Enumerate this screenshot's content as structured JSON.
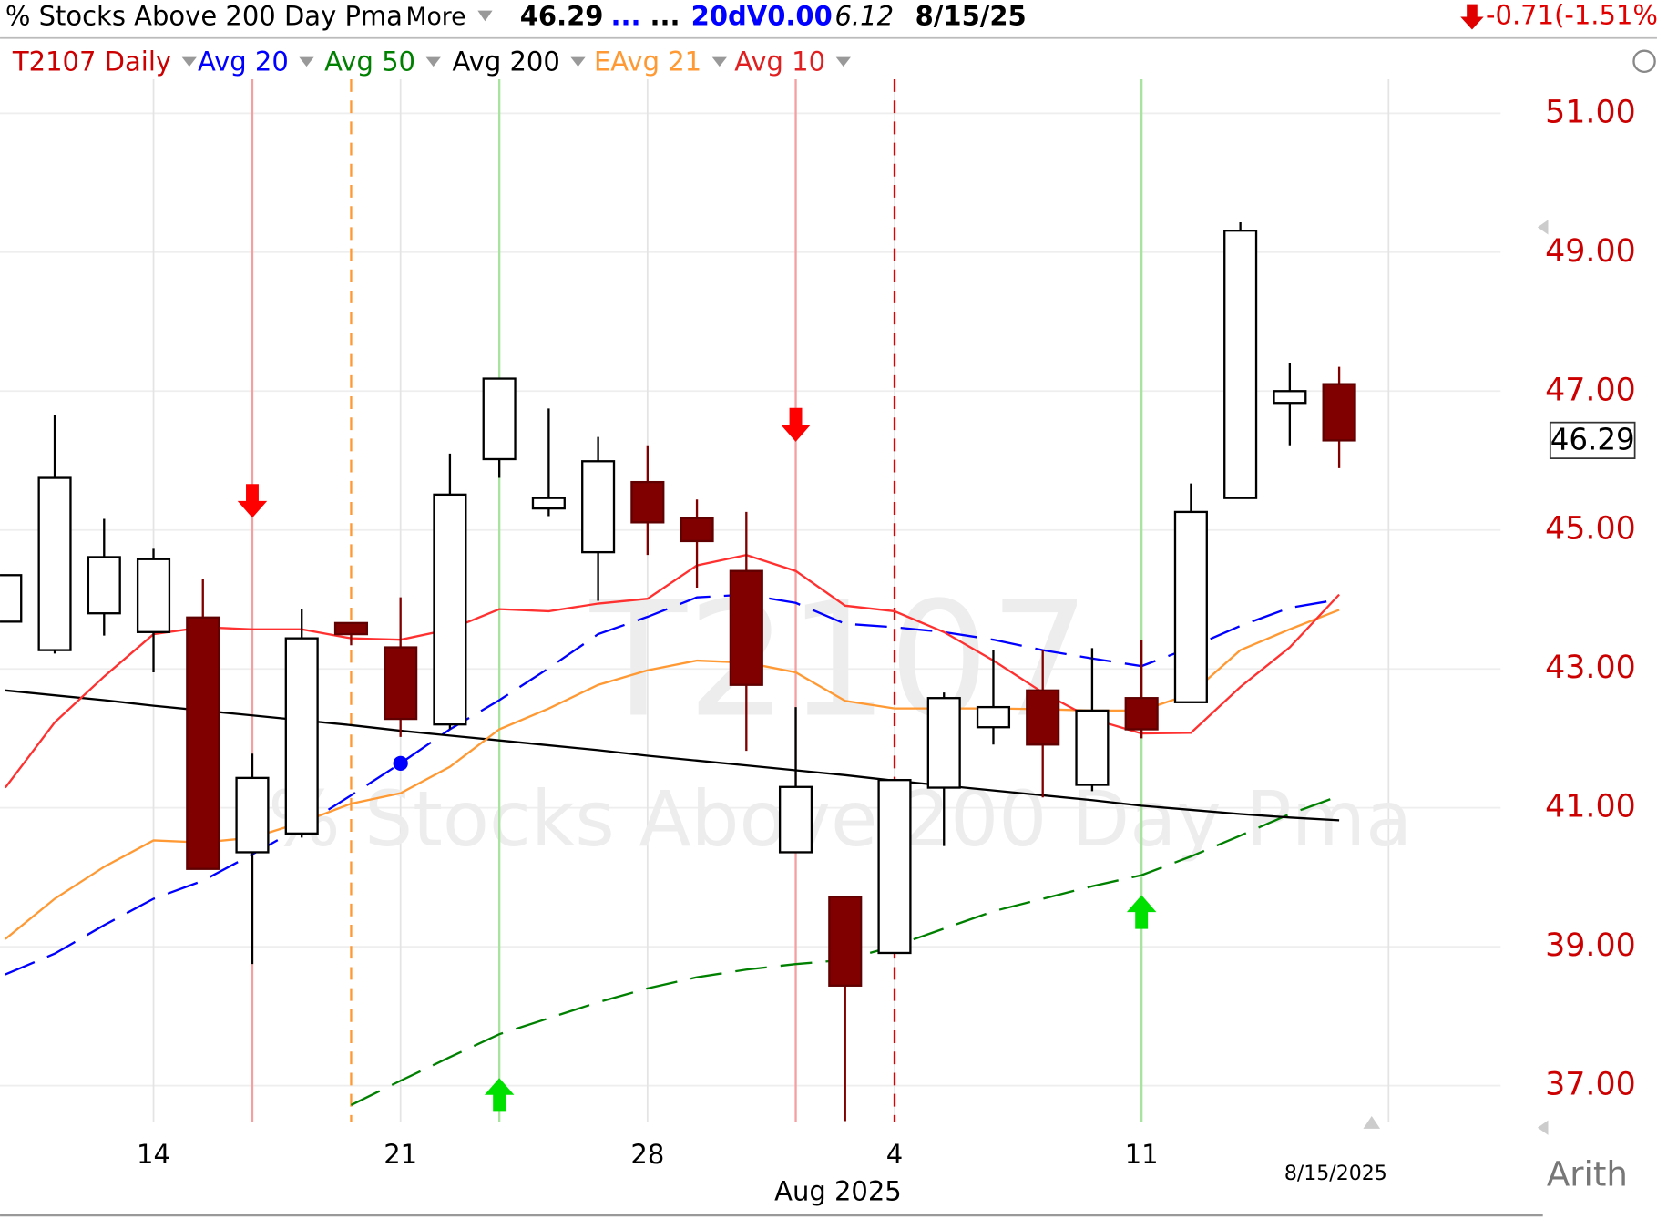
{
  "chart_data": {
    "type": "candlestick",
    "header": {
      "title": "% Stocks Above 200 Day Pma",
      "more": "More",
      "last": "46.29",
      "dots1": "...",
      "dots2": "...",
      "volume": "20dV0.00",
      "extra": "6.12",
      "date": "8/15/25",
      "change": "-0.71(-1.51%)"
    },
    "watermark": {
      "symbol": "T2107",
      "name": "% Stocks Above 200 Day Pma"
    },
    "categories": [
      null,
      null,
      null,
      "14",
      null,
      null,
      null,
      null,
      "21",
      null,
      null,
      null,
      null,
      "28",
      null,
      null,
      null,
      null,
      "4",
      null,
      null,
      null,
      null,
      "11",
      null,
      null,
      null,
      null
    ],
    "month_label": "Aug 2025",
    "last_date": "8/15/2025",
    "scale_label": "Arith",
    "candles": {
      "name": "T2107 Daily",
      "color": "#cc0000",
      "up_color": "#ffffff",
      "down_color": "#800000",
      "open": [
        43.68,
        43.27,
        43.8,
        43.53,
        43.74,
        40.36,
        40.63,
        43.66,
        43.31,
        42.2,
        46.02,
        45.31,
        44.68,
        45.69,
        45.17,
        44.41,
        40.36,
        39.72,
        38.91,
        41.29,
        42.16,
        42.69,
        41.33,
        42.58,
        42.52,
        45.46,
        46.83,
        47.1
      ],
      "high": [
        44.35,
        46.66,
        45.16,
        44.73,
        44.29,
        41.78,
        43.86,
        43.66,
        44.03,
        46.1,
        47.18,
        46.75,
        46.34,
        46.22,
        45.44,
        45.26,
        42.45,
        39.72,
        41.4,
        42.66,
        43.27,
        43.27,
        43.3,
        43.42,
        45.67,
        49.43,
        47.41,
        47.35
      ],
      "low": [
        43.68,
        43.22,
        43.48,
        42.95,
        40.12,
        38.75,
        40.57,
        43.34,
        42.02,
        42.13,
        45.75,
        45.2,
        43.98,
        44.64,
        44.17,
        41.82,
        40.36,
        36.49,
        38.91,
        40.45,
        41.91,
        41.15,
        41.24,
        42.0,
        42.52,
        45.46,
        46.22,
        45.89
      ],
      "close": [
        44.35,
        45.75,
        44.61,
        44.58,
        40.12,
        41.43,
        43.44,
        43.5,
        42.28,
        45.51,
        47.18,
        45.46,
        45.99,
        45.11,
        44.84,
        42.77,
        41.3,
        38.44,
        41.4,
        42.58,
        42.45,
        41.91,
        42.4,
        42.13,
        45.26,
        49.31,
        47.0,
        46.29
      ]
    },
    "series": [
      {
        "name": "Avg 20",
        "color": "#0000ff",
        "dashed": true,
        "values": [
          38.6,
          38.9,
          39.31,
          39.69,
          39.95,
          40.33,
          40.73,
          41.18,
          41.64,
          42.13,
          42.55,
          43.01,
          43.5,
          43.75,
          44.03,
          44.07,
          43.95,
          43.65,
          43.6,
          43.53,
          43.42,
          43.27,
          43.15,
          43.04,
          43.31,
          43.62,
          43.88,
          44.0
        ]
      },
      {
        "name": "Avg 50",
        "color": "#008000",
        "dashed": true,
        "values": [
          null,
          null,
          null,
          null,
          null,
          null,
          null,
          36.72,
          37.07,
          37.41,
          37.74,
          37.97,
          38.2,
          38.4,
          38.56,
          38.67,
          38.75,
          38.81,
          39.01,
          39.26,
          39.51,
          39.69,
          39.87,
          40.03,
          40.3,
          40.6,
          40.91,
          41.17
        ]
      },
      {
        "name": "Avg 200",
        "color": "#000000",
        "dashed": false,
        "values": [
          42.69,
          42.62,
          42.55,
          42.47,
          42.4,
          42.33,
          42.26,
          42.19,
          42.11,
          42.04,
          41.97,
          41.9,
          41.83,
          41.75,
          41.68,
          41.61,
          41.54,
          41.47,
          41.39,
          41.32,
          41.25,
          41.18,
          41.11,
          41.03,
          40.97,
          40.91,
          40.86,
          40.82
        ]
      },
      {
        "name": "EAvg 21",
        "color": "#ff9933",
        "dashed": false,
        "values": [
          39.11,
          39.69,
          40.15,
          40.53,
          40.5,
          40.57,
          40.79,
          41.06,
          41.21,
          41.59,
          42.13,
          42.43,
          42.77,
          42.98,
          43.12,
          43.09,
          42.95,
          42.54,
          42.43,
          42.43,
          42.43,
          42.42,
          42.4,
          42.4,
          42.64,
          43.27,
          43.57,
          43.85
        ]
      },
      {
        "name": "Avg 10",
        "color": "#ff3030",
        "dashed": false,
        "values": [
          41.29,
          42.23,
          42.89,
          43.5,
          43.6,
          43.57,
          43.57,
          43.44,
          43.42,
          43.57,
          43.86,
          43.83,
          43.94,
          44.01,
          44.49,
          44.64,
          44.41,
          43.91,
          43.83,
          43.53,
          43.12,
          42.66,
          42.28,
          42.07,
          42.08,
          42.74,
          43.31,
          44.07
        ]
      }
    ],
    "ylim": [
      36.47,
      51.49
    ],
    "yticks": [
      {
        "value": 37,
        "label": "37.00"
      },
      {
        "value": 39,
        "label": "39.00"
      },
      {
        "value": 41,
        "label": "41.00"
      },
      {
        "value": 43,
        "label": "43.00"
      },
      {
        "value": 45,
        "label": "45.00"
      },
      {
        "value": 47,
        "label": "47.00"
      },
      {
        "value": 49,
        "label": "49.00"
      },
      {
        "value": 51,
        "label": "51.00"
      }
    ],
    "grid": true
  }
}
